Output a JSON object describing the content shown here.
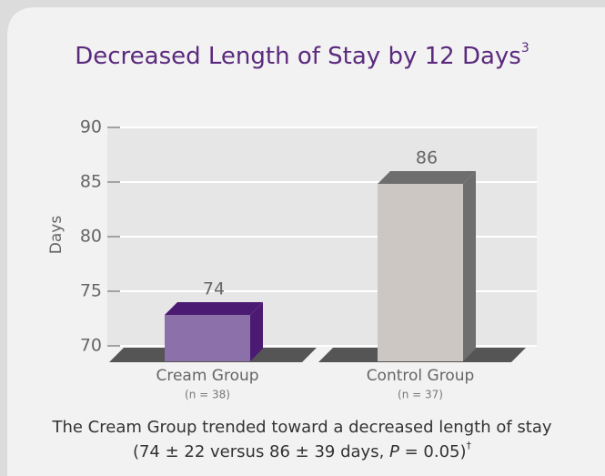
{
  "chart_data": {
    "type": "bar3d",
    "title": "Decreased Length of Stay by 12 Days",
    "title_superscript": "3",
    "y_label": "Days",
    "categories": [
      "Cream Group",
      "Control Group"
    ],
    "category_notes": [
      "(n = 38)",
      "(n = 37)"
    ],
    "values": [
      74,
      86
    ],
    "colors": [
      "#8b70a9",
      "#ccc7c3"
    ],
    "side_colors": [
      "#4b1a72",
      "#6e6e6e"
    ],
    "ylim": [
      70,
      90
    ],
    "yticks": [
      70,
      75,
      80,
      85,
      90
    ],
    "grid": true,
    "caption": [
      [
        "The Cream Group trended toward a decreased length of stay"
      ],
      [
        "(74 ± 22 versus 86 ± 39 days, ",
        "P",
        " = 0.05)",
        "†"
      ]
    ]
  }
}
